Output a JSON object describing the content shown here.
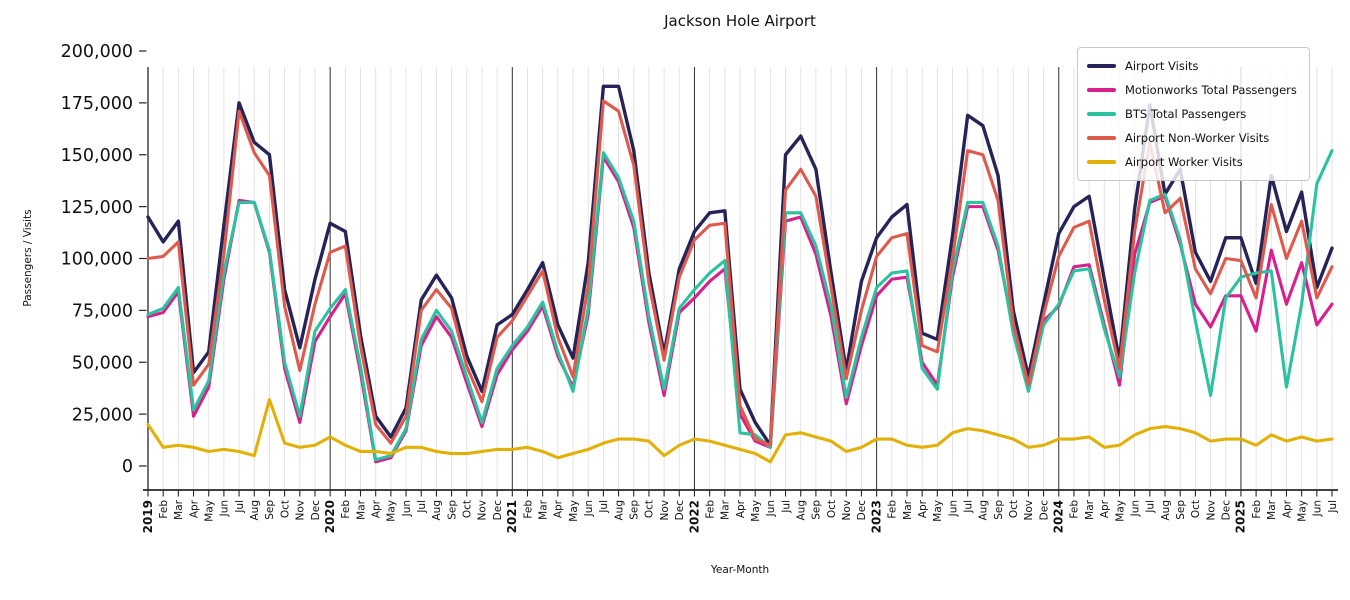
{
  "title": "Jackson Hole Airport",
  "chart_data": {
    "type": "line",
    "title": "Jackson Hole Airport",
    "xlabel": "Year-Month",
    "ylabel": "Passengers / Visits",
    "ylim": [
      0,
      200000
    ],
    "grid": "vertical-monthly, dark line at each January",
    "legend_position": "upper right",
    "y_tick_values": [
      0,
      25000,
      50000,
      75000,
      100000,
      125000,
      150000,
      175000,
      200000
    ],
    "y_tick_labels": [
      "0",
      "25,000",
      "50,000",
      "75,000",
      "100,000",
      "125,000",
      "150,000",
      "175,000",
      "200,000"
    ],
    "x_tick_labels": [
      "2019",
      "Feb",
      "Mar",
      "Apr",
      "May",
      "Jun",
      "Jul",
      "Aug",
      "Sep",
      "Oct",
      "Nov",
      "Dec",
      "2020",
      "Feb",
      "Mar",
      "Apr",
      "May",
      "Jun",
      "Jul",
      "Aug",
      "Sep",
      "Oct",
      "Nov",
      "Dec",
      "2021",
      "Feb",
      "Mar",
      "Apr",
      "May",
      "Jun",
      "Jul",
      "Aug",
      "Sep",
      "Oct",
      "Nov",
      "Dec",
      "2022",
      "Feb",
      "Mar",
      "Apr",
      "May",
      "Jun",
      "Jul",
      "Aug",
      "Sep",
      "Oct",
      "Nov",
      "Dec",
      "2023",
      "Feb",
      "Mar",
      "Apr",
      "May",
      "Jun",
      "Jul",
      "Aug",
      "Sep",
      "Oct",
      "Nov",
      "Dec",
      "2024",
      "Feb",
      "Mar",
      "Apr",
      "May",
      "Jun",
      "Jul",
      "Aug",
      "Sep",
      "Oct",
      "Nov",
      "Dec",
      "2025",
      "Feb",
      "Mar",
      "Apr",
      "May",
      "Jun",
      "Jul"
    ],
    "series": [
      {
        "name": "Airport Visits",
        "color": "#262358",
        "values": [
          120000,
          108000,
          118000,
          45000,
          55000,
          116000,
          175000,
          156000,
          150000,
          85000,
          57000,
          90000,
          117000,
          113000,
          63000,
          24000,
          14000,
          28000,
          80000,
          92000,
          81000,
          53000,
          36000,
          68000,
          73000,
          85000,
          98000,
          68000,
          52000,
          98000,
          183000,
          183000,
          152000,
          93000,
          54000,
          95000,
          113000,
          122000,
          123000,
          37000,
          21000,
          10000,
          150000,
          159000,
          143000,
          93000,
          46000,
          89000,
          110000,
          120000,
          126000,
          64000,
          61000,
          111000,
          169000,
          164000,
          140000,
          75000,
          43000,
          78000,
          112000,
          125000,
          130000,
          90000,
          51000,
          124000,
          174000,
          131000,
          143000,
          103000,
          89000,
          110000,
          110000,
          88000,
          140000,
          113000,
          132000,
          86000,
          105000
        ]
      },
      {
        "name": "Motionworks Total Passengers",
        "color": "#d91f8d",
        "values": [
          72000,
          74000,
          84000,
          24000,
          38000,
          90000,
          128000,
          127000,
          103000,
          47000,
          21000,
          60000,
          72000,
          83000,
          45000,
          2000,
          4000,
          17000,
          58000,
          72000,
          62000,
          40000,
          19000,
          44000,
          56000,
          65000,
          77000,
          53000,
          38000,
          73000,
          149000,
          137000,
          115000,
          69000,
          34000,
          74000,
          81000,
          89000,
          95000,
          25000,
          12000,
          9000,
          118000,
          120000,
          102000,
          72000,
          30000,
          58000,
          82000,
          90000,
          91000,
          50000,
          39000,
          91000,
          125000,
          125000,
          104000,
          66000,
          38000,
          70000,
          77000,
          96000,
          97000,
          68000,
          39000,
          102000,
          127000,
          130000,
          107000,
          78000,
          67000,
          82000,
          82000,
          65000,
          104000,
          78000,
          98000,
          68000,
          78000
        ]
      },
      {
        "name": "BTS Total Passengers",
        "color": "#2bc2a0",
        "values": [
          73000,
          76000,
          86000,
          27000,
          41000,
          93000,
          127000,
          127000,
          104000,
          50000,
          24000,
          65000,
          76000,
          85000,
          48000,
          3000,
          5000,
          18000,
          61000,
          75000,
          65000,
          43000,
          21000,
          47000,
          58000,
          67000,
          79000,
          55000,
          36000,
          76000,
          151000,
          139000,
          118000,
          72000,
          37000,
          76000,
          85000,
          93000,
          99000,
          16000,
          15000,
          9000,
          122000,
          122000,
          106000,
          77000,
          33000,
          62000,
          86000,
          93000,
          94000,
          47000,
          37000,
          94000,
          127000,
          127000,
          106000,
          64000,
          36000,
          68000,
          78000,
          94000,
          95000,
          66000,
          43000,
          93000,
          128000,
          131000,
          109000,
          70000,
          34000,
          81000,
          91000,
          93000,
          94000,
          38000,
          78000,
          136000,
          152000
        ]
      },
      {
        "name": "Airport Non-Worker Visits",
        "color": "#de5a4d",
        "values": [
          100000,
          101000,
          108000,
          39000,
          49000,
          102000,
          171000,
          151000,
          140000,
          77000,
          46000,
          78000,
          103000,
          106000,
          58000,
          20000,
          11000,
          24000,
          75000,
          85000,
          76000,
          48000,
          31000,
          62000,
          70000,
          82000,
          94000,
          62000,
          43000,
          87000,
          176000,
          171000,
          145000,
          88000,
          51000,
          91000,
          109000,
          116000,
          117000,
          29000,
          13000,
          10000,
          133000,
          143000,
          130000,
          86000,
          42000,
          75000,
          101000,
          110000,
          112000,
          58000,
          55000,
          100000,
          152000,
          150000,
          128000,
          69000,
          39000,
          73000,
          101000,
          115000,
          118000,
          80000,
          47000,
          113000,
          156000,
          122000,
          129000,
          95000,
          83000,
          100000,
          99000,
          81000,
          126000,
          100000,
          118000,
          81000,
          96000
        ]
      },
      {
        "name": "Airport Worker Visits",
        "color": "#e2b007",
        "values": [
          20000,
          9000,
          10000,
          9000,
          7000,
          8000,
          7000,
          5000,
          32000,
          11000,
          9000,
          10000,
          14000,
          10000,
          7000,
          7000,
          6000,
          9000,
          9000,
          7000,
          6000,
          6000,
          7000,
          8000,
          8000,
          9000,
          7000,
          4000,
          6000,
          8000,
          11000,
          13000,
          13000,
          12000,
          5000,
          10000,
          13000,
          12000,
          10000,
          8000,
          6000,
          2000,
          15000,
          16000,
          14000,
          12000,
          7000,
          9000,
          13000,
          13000,
          10000,
          9000,
          10000,
          16000,
          18000,
          17000,
          15000,
          13000,
          9000,
          10000,
          13000,
          13000,
          14000,
          9000,
          10000,
          15000,
          18000,
          19000,
          18000,
          16000,
          12000,
          13000,
          13000,
          10000,
          15000,
          12000,
          14000,
          12000,
          13000
        ]
      }
    ]
  }
}
